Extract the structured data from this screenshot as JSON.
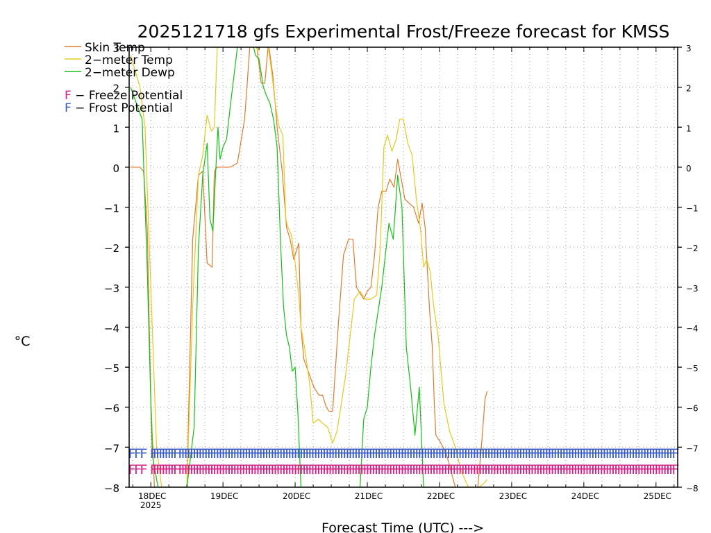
{
  "chart_data": {
    "type": "line",
    "title": "2025121718 gfs Experimental Frost/Freeze forecast for KMSS",
    "xlabel": "Forecast Time (UTC) --->",
    "ylabel": "°C",
    "xlim": [
      -0.3,
      7.3
    ],
    "ylim": [
      -8,
      3
    ],
    "yticks": [
      3,
      2,
      1,
      0,
      -1,
      -2,
      -3,
      -4,
      -5,
      -6,
      -7,
      -8
    ],
    "ytick_labels": [
      "3",
      "2",
      "1",
      "0",
      "−1",
      "−2",
      "−3",
      "−4",
      "−5",
      "−6",
      "−7",
      "−8"
    ],
    "xticks": [
      0,
      1,
      2,
      3,
      4,
      5,
      6,
      7
    ],
    "xtick_labels": [
      "18DEC",
      "19DEC",
      "20DEC",
      "21DEC",
      "22DEC",
      "23DEC",
      "24DEC",
      "25DEC"
    ],
    "xtick_sublabel": "2025",
    "grid": true,
    "series": [
      {
        "name": "Skin Temp",
        "color": "#e07a2c",
        "x": [
          -0.28,
          -0.15,
          -0.1,
          -0.05,
          0,
          0.05,
          0.12,
          0.3,
          0.5,
          0.58,
          0.66,
          0.72,
          0.78,
          0.85,
          0.88,
          0.92,
          0.97,
          1.1,
          1.2,
          1.3,
          1.38,
          1.45,
          1.53,
          1.58,
          1.63,
          1.69,
          1.75,
          1.82,
          1.88,
          1.93,
          1.98,
          2.05,
          2.08,
          2.12,
          2.2,
          2.26,
          2.33,
          2.38,
          2.43,
          2.47,
          2.52,
          2.6,
          2.67,
          2.74,
          2.8,
          2.85,
          2.95,
          3.0,
          3.05,
          3.1,
          3.15,
          3.2,
          3.26,
          3.31,
          3.37,
          3.42,
          3.47,
          3.52,
          3.58,
          3.64,
          3.71,
          3.76,
          3.8,
          3.86,
          3.9,
          3.93,
          3.95,
          4.02,
          4.1,
          4.16,
          4.22,
          4.26,
          4.45,
          4.53,
          4.58,
          4.63,
          4.66
        ],
        "y": [
          0,
          0,
          -0.1,
          -1.5,
          -5.8,
          -8,
          -8,
          -8,
          -8,
          -1.8,
          -0.2,
          -0.1,
          -2.4,
          -2.5,
          -0.1,
          0,
          0,
          0,
          0.1,
          1.2,
          3.2,
          3.3,
          2.1,
          2.1,
          3.1,
          2.3,
          1.0,
          -0.1,
          -1.5,
          -1.8,
          -2.3,
          -1.9,
          -4.0,
          -4.8,
          -5.2,
          -5.5,
          -5.7,
          -5.7,
          -6.0,
          -6.1,
          -6.1,
          -3.9,
          -2.2,
          -1.8,
          -1.8,
          -3.0,
          -3.3,
          -3.1,
          -3.0,
          -2.2,
          -1.0,
          -0.6,
          -0.6,
          -0.3,
          -0.5,
          0.2,
          -0.3,
          -0.8,
          -0.9,
          -1.0,
          -1.4,
          -0.9,
          -1.5,
          -3.5,
          -4.5,
          -6.0,
          -6.7,
          -6.9,
          -7.2,
          -7.6,
          -8,
          -8,
          -8,
          -8,
          -7.0,
          -5.8,
          -5.6
        ]
      },
      {
        "name": "2-meter Temp",
        "color": "#e8c81e",
        "x": [
          -0.28,
          -0.15,
          -0.08,
          0,
          0.08,
          0.15,
          0.5,
          0.58,
          0.66,
          0.72,
          0.78,
          0.84,
          0.88,
          0.92,
          0.95,
          1.0,
          1.1,
          1.2,
          1.3,
          1.35,
          1.42,
          1.48,
          1.55,
          1.62,
          1.68,
          1.73,
          1.78,
          1.83,
          1.87,
          1.9,
          1.95,
          2.0,
          2.05,
          2.08,
          2.13,
          2.2,
          2.25,
          2.32,
          2.38,
          2.45,
          2.52,
          2.58,
          2.7,
          2.82,
          2.9,
          2.97,
          3.05,
          3.13,
          3.18,
          3.23,
          3.28,
          3.34,
          3.4,
          3.45,
          3.5,
          3.56,
          3.62,
          3.68,
          3.74,
          3.78,
          3.82,
          3.87,
          3.92,
          3.98,
          4.06,
          4.14,
          4.22,
          4.3,
          4.4,
          4.5,
          4.55,
          4.62,
          4.66
        ],
        "y": [
          2.8,
          2.0,
          1.0,
          -3.0,
          -7.0,
          -8,
          -8,
          -3.5,
          -0.2,
          0.3,
          1.3,
          0.9,
          1.0,
          3,
          3,
          3,
          3,
          3,
          3.2,
          3.3,
          3.2,
          2.9,
          3.2,
          3.1,
          2.3,
          1.5,
          1.0,
          0.8,
          -1.3,
          -1.5,
          -1.7,
          -2.4,
          -3.2,
          -4.0,
          -4.5,
          -5.4,
          -6.4,
          -6.3,
          -6.4,
          -6.5,
          -6.9,
          -6.6,
          -5.2,
          -3.3,
          -3.1,
          -3.3,
          -3.3,
          -3.2,
          -2.0,
          0.5,
          0.8,
          0.4,
          0.7,
          1.2,
          1.2,
          0.6,
          0.3,
          -0.8,
          -1.6,
          -2.5,
          -2.3,
          -2.6,
          -3.5,
          -4.2,
          -5.9,
          -6.6,
          -7.0,
          -7.6,
          -8.0,
          -8,
          -8,
          -7.9,
          -7.8
        ]
      },
      {
        "name": "2-meter Dewp",
        "color": "#12c212",
        "x": [
          -0.28,
          -0.18,
          -0.12,
          -0.05,
          0.02,
          0.1,
          0.5,
          0.6,
          0.66,
          0.72,
          0.78,
          0.82,
          0.86,
          0.9,
          0.93,
          0.96,
          1.0,
          1.05,
          1.1,
          1.2,
          1.3,
          1.4,
          1.45,
          1.5,
          1.56,
          1.6,
          1.65,
          1.7,
          1.75,
          1.8,
          1.84,
          1.88,
          1.92,
          1.96,
          2.0,
          2.04,
          2.08,
          2.12,
          2.16,
          2.2,
          2.3,
          2.45,
          2.6,
          2.75,
          2.9,
          2.95,
          3.0,
          3.05,
          3.1,
          3.15,
          3.2,
          3.25,
          3.3,
          3.36,
          3.42,
          3.48,
          3.54,
          3.6,
          3.66,
          3.72,
          3.78,
          3.83,
          3.9,
          3.95,
          4.0,
          4.05,
          4.1,
          4.2
        ],
        "y": [
          2.0,
          1.5,
          1.2,
          -2.5,
          -7.2,
          -8,
          -8,
          -6.5,
          -2.0,
          -0.2,
          0.6,
          -1.3,
          -1.6,
          -0.1,
          1.0,
          0.2,
          0.5,
          0.7,
          1.5,
          3,
          3.3,
          3.2,
          2.8,
          2.7,
          2.0,
          1.8,
          1.6,
          1.2,
          0.5,
          -2.0,
          -3.5,
          -4.2,
          -4.5,
          -5.1,
          -5.0,
          -6.2,
          -8,
          -8,
          -8,
          -8,
          -8,
          -8,
          -8,
          -8,
          -8,
          -6.3,
          -6.0,
          -5.0,
          -4.2,
          -3.6,
          -3.0,
          -2.2,
          -1.4,
          -1.8,
          -0.2,
          -1.0,
          -4.5,
          -5.5,
          -6.7,
          -5.5,
          -8,
          -8,
          -8,
          -8,
          -8,
          -8,
          -8,
          -8
        ]
      }
    ],
    "legend": {
      "position": "top-left",
      "entries": [
        "Skin Temp",
        "2−meter Temp",
        "2−meter Dewp"
      ],
      "flags": [
        {
          "letter": "F",
          "text": " − Freeze Potential",
          "color": "#d6218a"
        },
        {
          "letter": "F",
          "text": " − Frost Potential",
          "color": "#3a5cc8"
        }
      ]
    },
    "markers": {
      "char": "F",
      "frost": {
        "color": "#3a5cc8",
        "level": -7.15,
        "x": [
          -0.26,
          -0.18,
          -0.1,
          0.04,
          0.08,
          0.12,
          0.16,
          0.2,
          0.24,
          0.28,
          0.32,
          0.36,
          0.43,
          0.47,
          0.51,
          0.55,
          0.59,
          0.63,
          0.67,
          0.71,
          0.75,
          0.79,
          0.83,
          0.87,
          0.91,
          0.95,
          0.99,
          1.03,
          1.07,
          1.11,
          1.15,
          1.19,
          1.23,
          1.27,
          1.31,
          1.35,
          1.39,
          1.43,
          1.47,
          1.51,
          1.55,
          1.59,
          1.63,
          1.67,
          1.71,
          1.75,
          1.79,
          1.83,
          1.87,
          1.91,
          1.95,
          1.99,
          2.03,
          2.07,
          2.11,
          2.15,
          2.19,
          2.23,
          2.27,
          2.31,
          2.35,
          2.39,
          2.43,
          2.47,
          2.51,
          2.55,
          2.59,
          2.63,
          2.67,
          2.71,
          2.75,
          2.79,
          2.83,
          2.87,
          2.91,
          2.95,
          2.99,
          3.03,
          3.07,
          3.11,
          3.15,
          3.19,
          3.23,
          3.27,
          3.31,
          3.35,
          3.39,
          3.43,
          3.47,
          3.51,
          3.55,
          3.59,
          3.63,
          3.67,
          3.71,
          3.75,
          3.79,
          3.83,
          3.87,
          3.91,
          3.95,
          3.99,
          4.03,
          4.07,
          4.11,
          4.15,
          4.19,
          4.23,
          4.27,
          4.31,
          4.35,
          4.39,
          4.43,
          4.47,
          4.51,
          4.55,
          4.59,
          4.63,
          4.67,
          4.71,
          4.75,
          4.79,
          4.83,
          4.87,
          4.91,
          4.95,
          4.99,
          5.03,
          5.07,
          5.11,
          5.15,
          5.19,
          5.23,
          5.27,
          5.31,
          5.35,
          5.39,
          5.43,
          5.47,
          5.51,
          5.55,
          5.59,
          5.63,
          5.67,
          5.71,
          5.75,
          5.79,
          5.83,
          5.87,
          5.91,
          5.95,
          5.99,
          6.03,
          6.07,
          6.11,
          6.15,
          6.19,
          6.23,
          6.27,
          6.31,
          6.35,
          6.39,
          6.43,
          6.47,
          6.51,
          6.55,
          6.59,
          6.63,
          6.67,
          6.71,
          6.75,
          6.79,
          6.83,
          6.87,
          6.91,
          6.95,
          6.99,
          7.03,
          7.07,
          7.11,
          7.15,
          7.19,
          7.23,
          7.27
        ]
      },
      "freeze": {
        "color": "#d6218a",
        "level": -7.55,
        "x": [
          -0.26,
          -0.18,
          -0.1,
          0.04,
          0.08,
          0.12,
          0.16,
          0.2,
          0.24,
          0.28,
          0.32,
          0.36,
          0.43,
          0.47,
          0.51,
          0.55,
          0.59,
          0.63,
          0.67,
          0.71,
          0.75,
          0.79,
          0.83,
          0.87,
          0.91,
          0.95,
          0.99,
          1.03,
          1.07,
          1.11,
          1.15,
          1.19,
          1.23,
          1.27,
          1.31,
          1.35,
          1.39,
          1.43,
          1.47,
          1.51,
          1.55,
          1.59,
          1.63,
          1.67,
          1.71,
          1.75,
          1.79,
          1.83,
          1.87,
          1.91,
          1.95,
          1.99,
          2.03,
          2.07,
          2.11,
          2.15,
          2.19,
          2.23,
          2.27,
          2.31,
          2.35,
          2.39,
          2.43,
          2.47,
          2.51,
          2.55,
          2.59,
          2.63,
          2.67,
          2.71,
          2.75,
          2.79,
          2.83,
          2.87,
          2.91,
          2.95,
          2.99,
          3.03,
          3.07,
          3.11,
          3.15,
          3.19,
          3.23,
          3.27,
          3.31,
          3.35,
          3.39,
          3.43,
          3.47,
          3.51,
          3.55,
          3.59,
          3.63,
          3.67,
          3.71,
          3.75,
          3.79,
          3.83,
          3.87,
          3.91,
          3.95,
          3.99,
          4.03,
          4.07,
          4.11,
          4.15,
          4.19,
          4.23,
          4.27,
          4.31,
          4.35,
          4.39,
          4.43,
          4.47,
          4.51,
          4.55,
          4.59,
          4.63,
          4.67,
          4.71,
          4.75,
          4.79,
          4.83,
          4.87,
          4.91,
          4.95,
          4.99,
          5.03,
          5.07,
          5.11,
          5.15,
          5.19,
          5.23,
          5.27,
          5.31,
          5.35,
          5.39,
          5.43,
          5.47,
          5.51,
          5.55,
          5.59,
          5.63,
          5.67,
          5.71,
          5.75,
          5.79,
          5.83,
          5.87,
          5.91,
          5.95,
          5.99,
          6.03,
          6.07,
          6.11,
          6.15,
          6.19,
          6.23,
          6.27,
          6.31,
          6.35,
          6.39,
          6.43,
          6.47,
          6.51,
          6.55,
          6.59,
          6.63,
          6.67,
          6.71,
          6.75,
          6.79,
          6.83,
          6.87,
          6.91,
          6.95,
          6.99,
          7.03,
          7.07,
          7.11,
          7.15,
          7.19,
          7.23,
          7.27
        ]
      }
    }
  }
}
